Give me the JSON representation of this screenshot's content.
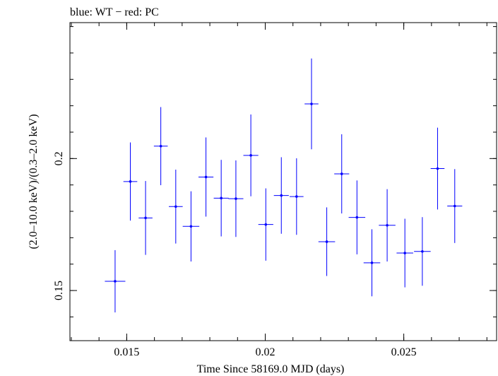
{
  "chart_data": {
    "type": "scatter",
    "title": "blue: WT − red: PC",
    "xlabel": "Time Since 58169.0 MJD (days)",
    "ylabel": "(2.0–10.0 keV)/(0.3–2.0 keV)",
    "xlim": [
      0.01295,
      0.02835
    ],
    "ylim": [
      0.131,
      0.2515
    ],
    "x_ticks": [
      {
        "value": 0.015,
        "label": "0.015"
      },
      {
        "value": 0.02,
        "label": "0.02"
      },
      {
        "value": 0.025,
        "label": "0.025"
      }
    ],
    "y_ticks": [
      {
        "value": 0.15,
        "label": "0.15"
      },
      {
        "value": 0.2,
        "label": "0.2"
      }
    ],
    "series": [
      {
        "color": "#0000ff",
        "points": [
          {
            "x": 0.01458,
            "xerr": 0.00037,
            "y": 0.1535,
            "yerr": 0.0118
          },
          {
            "x": 0.01513,
            "xerr": 0.00025,
            "y": 0.1913,
            "yerr": 0.0148
          },
          {
            "x": 0.01568,
            "xerr": 0.00025,
            "y": 0.1775,
            "yerr": 0.014
          },
          {
            "x": 0.01623,
            "xerr": 0.00025,
            "y": 0.2047,
            "yerr": 0.0148
          },
          {
            "x": 0.01677,
            "xerr": 0.00025,
            "y": 0.1818,
            "yerr": 0.014
          },
          {
            "x": 0.01732,
            "xerr": 0.0003,
            "y": 0.1743,
            "yerr": 0.0133
          },
          {
            "x": 0.01786,
            "xerr": 0.00027,
            "y": 0.193,
            "yerr": 0.015
          },
          {
            "x": 0.01841,
            "xerr": 0.00027,
            "y": 0.185,
            "yerr": 0.0145
          },
          {
            "x": 0.01894,
            "xerr": 0.00027,
            "y": 0.1848,
            "yerr": 0.0145
          },
          {
            "x": 0.01948,
            "xerr": 0.00027,
            "y": 0.2012,
            "yerr": 0.0155
          },
          {
            "x": 0.02002,
            "xerr": 0.00027,
            "y": 0.175,
            "yerr": 0.0137
          },
          {
            "x": 0.02058,
            "xerr": 0.00027,
            "y": 0.186,
            "yerr": 0.0145
          },
          {
            "x": 0.02113,
            "xerr": 0.00025,
            "y": 0.1856,
            "yerr": 0.0145
          },
          {
            "x": 0.02167,
            "xerr": 0.00025,
            "y": 0.2207,
            "yerr": 0.0172
          },
          {
            "x": 0.02222,
            "xerr": 0.0003,
            "y": 0.1685,
            "yerr": 0.013
          },
          {
            "x": 0.02276,
            "xerr": 0.00027,
            "y": 0.1942,
            "yerr": 0.015
          },
          {
            "x": 0.02331,
            "xerr": 0.0003,
            "y": 0.1777,
            "yerr": 0.014
          },
          {
            "x": 0.02385,
            "xerr": 0.0003,
            "y": 0.1605,
            "yerr": 0.0127
          },
          {
            "x": 0.0244,
            "xerr": 0.0003,
            "y": 0.1747,
            "yerr": 0.0137
          },
          {
            "x": 0.02504,
            "xerr": 0.0003,
            "y": 0.1642,
            "yerr": 0.013
          },
          {
            "x": 0.02567,
            "xerr": 0.0003,
            "y": 0.1648,
            "yerr": 0.013
          },
          {
            "x": 0.02622,
            "xerr": 0.00025,
            "y": 0.1962,
            "yerr": 0.0155
          },
          {
            "x": 0.02684,
            "xerr": 0.00027,
            "y": 0.182,
            "yerr": 0.014
          }
        ]
      }
    ]
  }
}
